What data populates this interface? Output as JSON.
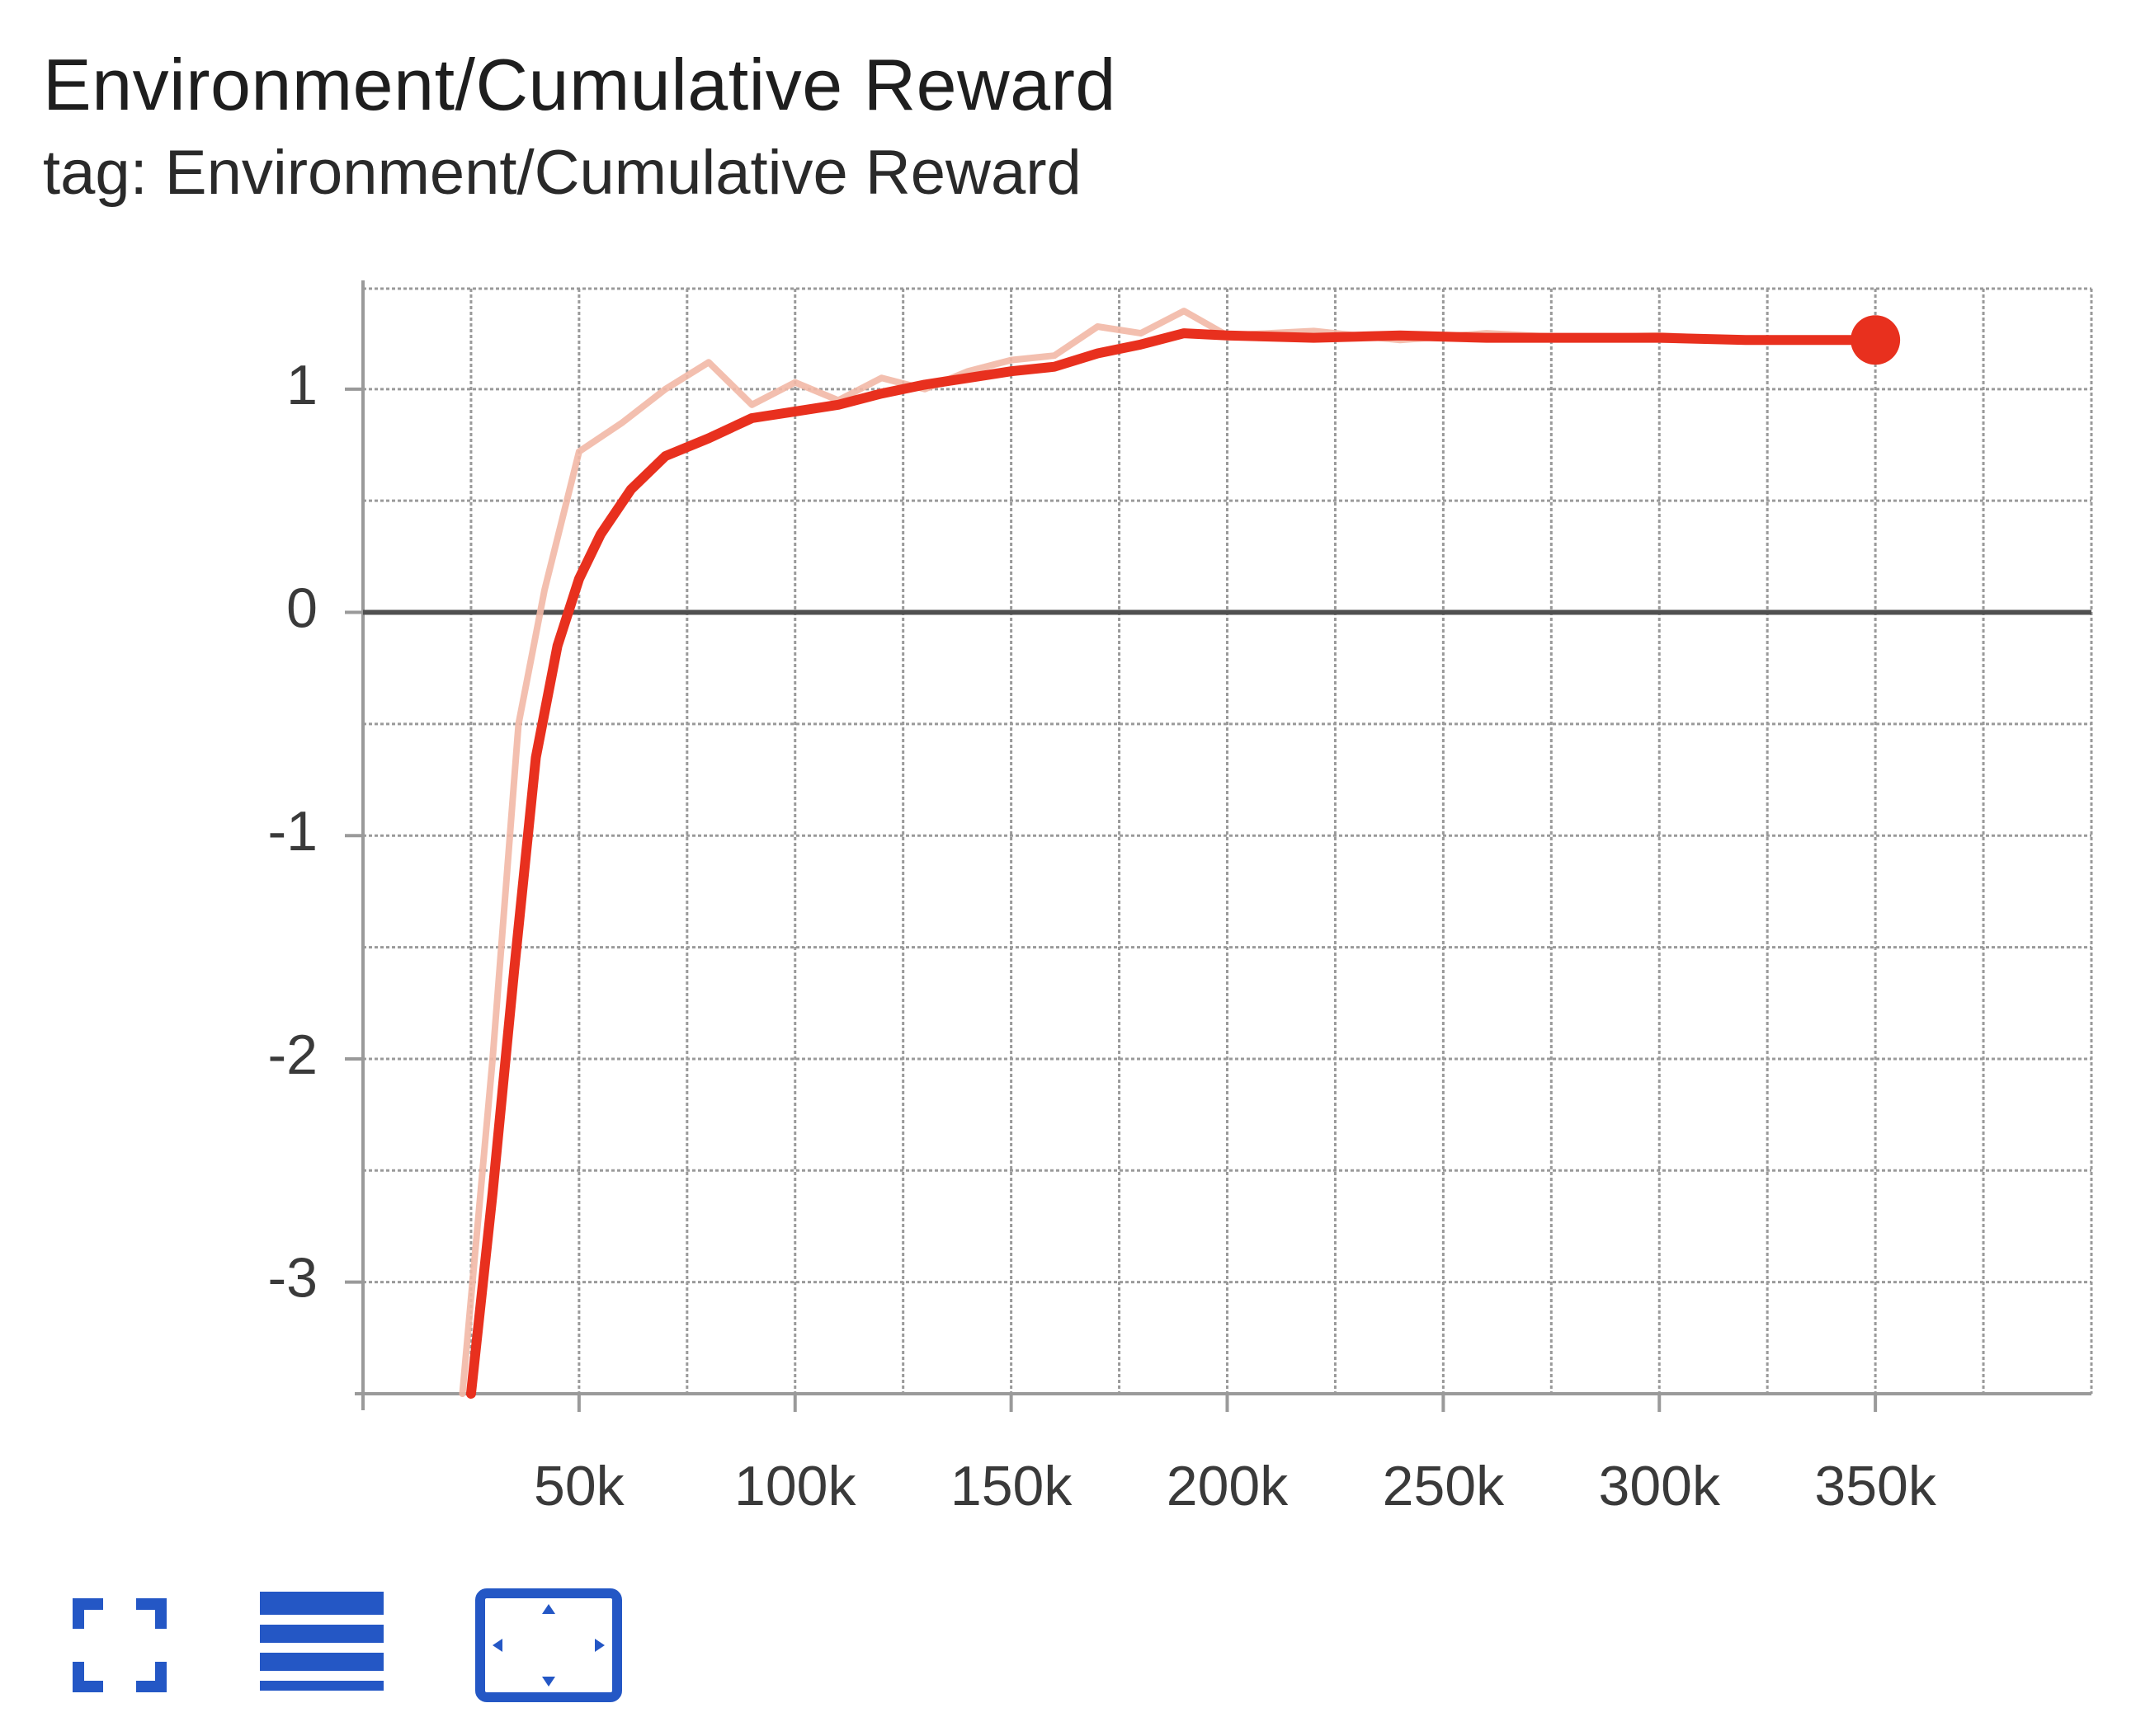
{
  "card": {
    "title": "Environment/Cumulative Reward",
    "subtitle": "tag: Environment/Cumulative Reward"
  },
  "toolbar": {
    "buttons": [
      {
        "icon": "fullscreen-icon"
      },
      {
        "icon": "data-table-icon"
      },
      {
        "icon": "fit-domain-icon"
      }
    ]
  },
  "colors": {
    "smoothed": "#e8301e",
    "raw": "#f2b8a6",
    "grid": "#9a9a9a",
    "zero_line": "#505050",
    "icon": "#2457c5"
  },
  "chart_data": {
    "type": "line",
    "title": "Environment/Cumulative Reward",
    "subtitle": "tag: Environment/Cumulative Reward",
    "xlabel": "",
    "ylabel": "",
    "xlim": [
      0,
      400000
    ],
    "ylim": [
      -3.5,
      1.45
    ],
    "x_ticks": [
      50000,
      100000,
      150000,
      200000,
      250000,
      300000,
      350000
    ],
    "x_tick_labels": [
      "50k",
      "100k",
      "150k",
      "200k",
      "250k",
      "300k",
      "350k"
    ],
    "y_ticks": [
      -3,
      -2,
      -1,
      0,
      1
    ],
    "y_tick_labels": [
      "-3",
      "-2",
      "-1",
      "0",
      "1"
    ],
    "grid": true,
    "legend": "none",
    "series": [
      {
        "role": "raw",
        "x": [
          23000,
          30000,
          36000,
          42000,
          50000,
          60000,
          70000,
          80000,
          90000,
          100000,
          110000,
          120000,
          130000,
          140000,
          150000,
          160000,
          170000,
          180000,
          190000,
          200000,
          220000,
          240000,
          260000,
          280000,
          300000,
          320000,
          350000
        ],
        "values": [
          -3.5,
          -2.0,
          -0.5,
          0.1,
          0.72,
          0.85,
          1.0,
          1.12,
          0.93,
          1.03,
          0.95,
          1.05,
          1.0,
          1.08,
          1.13,
          1.15,
          1.28,
          1.25,
          1.35,
          1.24,
          1.26,
          1.22,
          1.25,
          1.23,
          1.24,
          1.22,
          1.22
        ]
      },
      {
        "role": "smoothed",
        "x": [
          25000,
          30000,
          35000,
          40000,
          45000,
          50000,
          55000,
          62000,
          70000,
          80000,
          90000,
          100000,
          110000,
          120000,
          130000,
          140000,
          150000,
          160000,
          170000,
          180000,
          190000,
          200000,
          220000,
          240000,
          260000,
          280000,
          300000,
          320000,
          350000
        ],
        "values": [
          -3.5,
          -2.6,
          -1.6,
          -0.65,
          -0.15,
          0.15,
          0.35,
          0.55,
          0.7,
          0.78,
          0.87,
          0.9,
          0.93,
          0.98,
          1.02,
          1.05,
          1.08,
          1.1,
          1.16,
          1.2,
          1.25,
          1.24,
          1.23,
          1.24,
          1.23,
          1.23,
          1.23,
          1.22,
          1.22
        ]
      }
    ],
    "highlighted_point": {
      "x": 350000,
      "y": 1.22
    }
  }
}
